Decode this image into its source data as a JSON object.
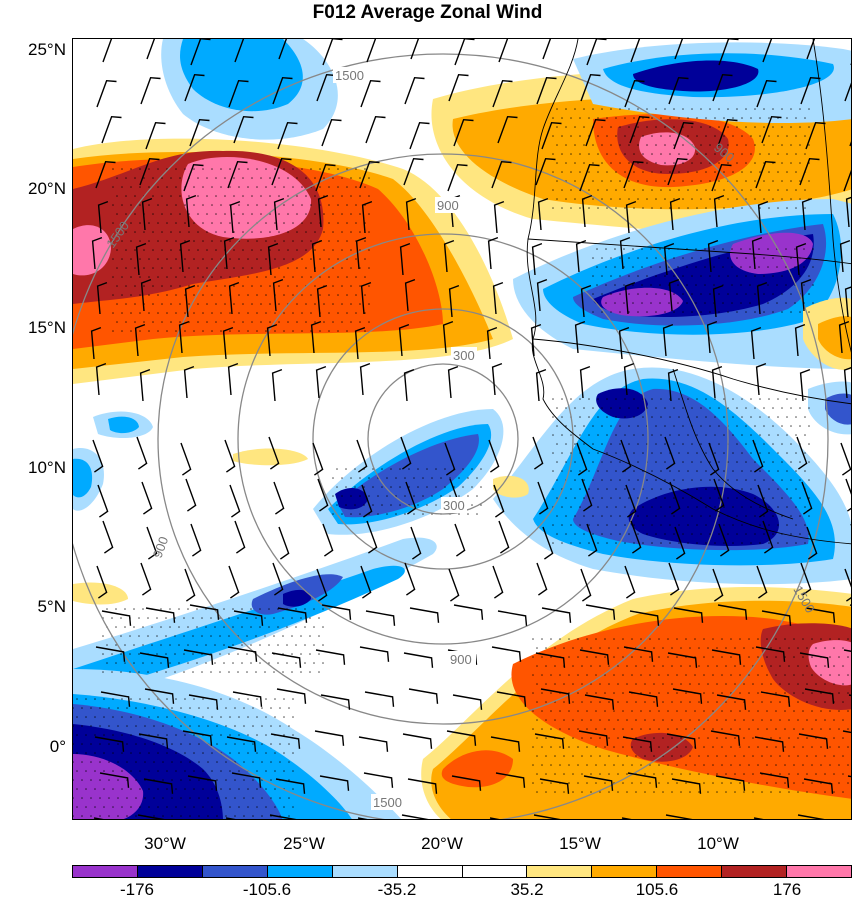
{
  "title": "F012 Average Zonal Wind",
  "latitude_labels": [
    "25°N",
    "20°N",
    "15°N",
    "10°N",
    "5°N",
    "0°"
  ],
  "longitude_labels": [
    "30°W",
    "25°W",
    "20°W",
    "15°W",
    "10°W"
  ],
  "range_ring_labels": [
    "300",
    "900",
    "1500",
    "300",
    "900",
    "1500",
    "900",
    "1500",
    "900",
    "1500"
  ],
  "colorbar": {
    "colors": [
      "#9933cc",
      "#000099",
      "#3355cc",
      "#00aaff",
      "#aaddff",
      "#ffffff",
      "#ffffff",
      "#ffe680",
      "#ffaa00",
      "#ff5500",
      "#b22222",
      "#ff77aa"
    ],
    "labels": [
      "-176",
      "-105.6",
      "-35.2",
      "35.2",
      "105.6",
      "176"
    ]
  }
}
